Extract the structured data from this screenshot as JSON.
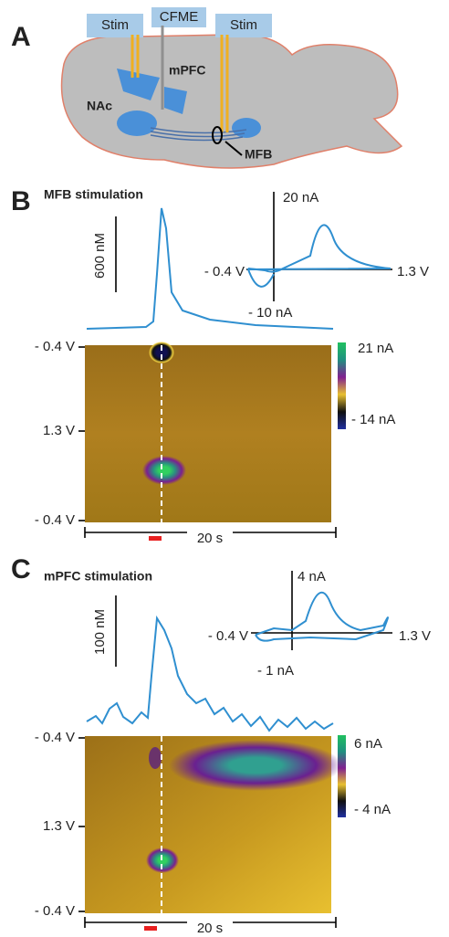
{
  "panel_a": {
    "label": "A",
    "stim_left": "Stim",
    "cfme": "CFME",
    "stim_right": "Stim",
    "mpfc": "mPFC",
    "nac": "NAc",
    "mfb": "MFB"
  },
  "panel_b": {
    "label": "B",
    "title": "MFB stimulation",
    "scale": "600 nM",
    "cv_top": "20 nA",
    "cv_left": "- 0.4 V",
    "cv_right": "1.3 V",
    "cv_bottom": "- 10 nA",
    "plot_top": "- 0.4 V",
    "plot_mid": "1.3 V",
    "plot_bottom": "- 0.4 V",
    "bar_top": "21 nA",
    "bar_bottom": "- 14 nA",
    "time": "20 s"
  },
  "panel_c": {
    "label": "C",
    "title": "mPFC stimulation",
    "scale": "100 nM",
    "cv_top": "4 nA",
    "cv_left": "- 0.4 V",
    "cv_right": "1.3 V",
    "cv_bottom": "- 1 nA",
    "plot_top": "- 0.4 V",
    "plot_mid": "1.3 V",
    "plot_bottom": "- 0.4 V",
    "bar_top": "6 nA",
    "bar_bottom": "- 4 nA",
    "time": "20 s"
  }
}
